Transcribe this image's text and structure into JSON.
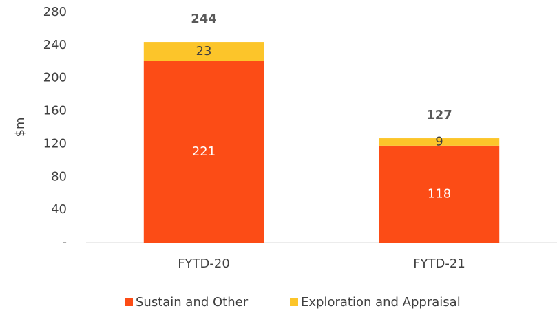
{
  "chart_data": {
    "type": "stacked_bar",
    "y_label": "$m",
    "categories": [
      "FYTD-20",
      "FYTD-21"
    ],
    "series": [
      {
        "name": "Sustain and Other",
        "color": "#fc4c16",
        "label_color": "#ffffff",
        "values": [
          221,
          118
        ]
      },
      {
        "name": "Exploration and Appraisal",
        "color": "#fcc52a",
        "label_color": "#404040",
        "values": [
          23,
          9
        ]
      }
    ],
    "totals": [
      244,
      127
    ],
    "ylim": [
      0,
      280
    ],
    "yticks": [
      {
        "value": 0,
        "label": "-"
      },
      40,
      80,
      120,
      160,
      200,
      240,
      280
    ],
    "legend": "bottom"
  }
}
